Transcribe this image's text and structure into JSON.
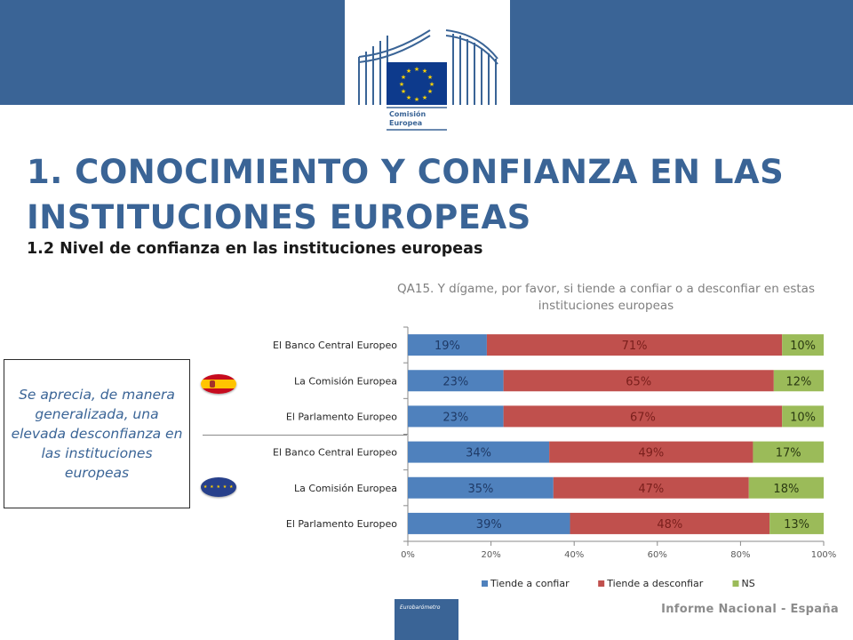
{
  "logo": {
    "name": "Comisión Europea",
    "line1": "Comisión",
    "line2": "Europea"
  },
  "header": {
    "title": "1. CONOCIMIENTO Y CONFIANZA EN LAS INSTITUCIONES EUROPEAS",
    "subtitle": "1.2 Nivel de confianza en las instituciones europeas"
  },
  "callout": {
    "text": "Se aprecia, de manera generalizada, una elevada desconfianza en las instituciones europeas"
  },
  "flags": {
    "spain": "spain-flag",
    "eu": "eu-flag"
  },
  "footer": {
    "badge": "Eurobarómetro",
    "text": "Informe Nacional - España"
  },
  "colors": {
    "brand": "#3a6496",
    "confiar": "#4f81bd",
    "desconfiar": "#c0504d",
    "ns": "#9bbb59"
  },
  "chart_data": {
    "type": "bar",
    "orientation": "horizontal",
    "stacked": true,
    "title": "QA15. Y dígame, por favor, si tiende a confiar o a desconfiar en estas instituciones europeas",
    "categories": [
      "El Banco Central Europeo",
      "La Comisión Europea",
      "El Parlamento Europeo",
      "El Banco Central Europeo",
      "La Comisión Europea",
      "El Parlamento Europeo"
    ],
    "series": [
      {
        "name": "Tiende a confiar",
        "values": [
          19,
          23,
          23,
          34,
          35,
          39
        ],
        "labels": [
          "19%",
          "23%",
          "23%",
          "34%",
          "35%",
          "39%"
        ]
      },
      {
        "name": "Tiende a desconfiar",
        "values": [
          71,
          65,
          67,
          49,
          47,
          48
        ],
        "labels": [
          "71%",
          "65%",
          "67%",
          "49%",
          "47%",
          "48%"
        ]
      },
      {
        "name": "NS",
        "values": [
          10,
          12,
          10,
          17,
          18,
          13
        ],
        "labels": [
          "10%",
          "12%",
          "10%",
          "17%",
          "18%",
          "13%"
        ]
      }
    ],
    "xlim": [
      0,
      100
    ],
    "xticks": [
      "0%",
      "20%",
      "40%",
      "60%",
      "80%",
      "100%"
    ],
    "grid": false,
    "legend": "bottom"
  }
}
